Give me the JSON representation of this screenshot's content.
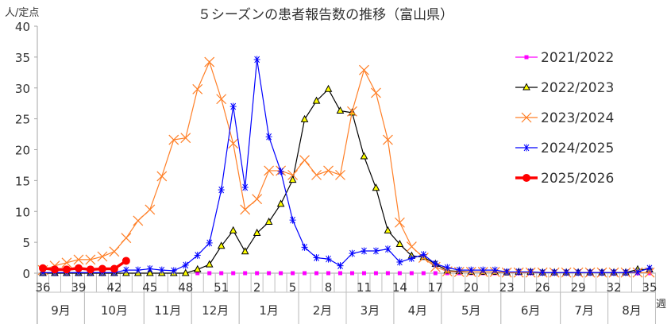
{
  "chart_data": {
    "type": "line",
    "title": "５シーズンの患者報告数の推移（富山県）",
    "ylabel": "人/定点",
    "xlabel": "週",
    "ylim": [
      0,
      40
    ],
    "yticks": [
      0,
      5,
      10,
      15,
      20,
      25,
      30,
      35,
      40
    ],
    "grid": false,
    "legend_position": "right",
    "x": [
      36,
      37,
      38,
      39,
      40,
      41,
      42,
      43,
      44,
      45,
      46,
      47,
      48,
      49,
      50,
      51,
      52,
      1,
      2,
      3,
      4,
      5,
      6,
      7,
      8,
      9,
      10,
      11,
      12,
      13,
      14,
      15,
      16,
      17,
      18,
      19,
      20,
      21,
      22,
      23,
      24,
      25,
      26,
      27,
      28,
      29,
      30,
      31,
      32,
      33,
      34,
      35
    ],
    "xtick_labels": [
      "36",
      "39",
      "42",
      "45",
      "48",
      "51",
      "2",
      "5",
      "8",
      "11",
      "14",
      "17",
      "20",
      "23",
      "26",
      "29",
      "32",
      "35"
    ],
    "month_labels": [
      {
        "label": "9月",
        "from": 0,
        "to": 4
      },
      {
        "label": "10月",
        "from": 4,
        "to": 9
      },
      {
        "label": "11月",
        "from": 9,
        "to": 13
      },
      {
        "label": "12月",
        "from": 13,
        "to": 17
      },
      {
        "label": "1月",
        "from": 17,
        "to": 22
      },
      {
        "label": "2月",
        "from": 22,
        "to": 26
      },
      {
        "label": "3月",
        "from": 26,
        "to": 30
      },
      {
        "label": "4月",
        "from": 30,
        "to": 34
      },
      {
        "label": "5月",
        "from": 34,
        "to": 39
      },
      {
        "label": "6月",
        "from": 39,
        "to": 44
      },
      {
        "label": "7月",
        "from": 44,
        "to": 48
      },
      {
        "label": "8月",
        "from": 48,
        "to": 52
      }
    ],
    "series": [
      {
        "name": "2021/2022",
        "color": "#ff00ff",
        "marker": "square",
        "start": 13,
        "values": [
          0,
          0,
          0,
          0,
          0,
          0,
          0,
          0,
          0,
          0,
          0,
          0,
          0,
          0,
          0,
          0,
          0,
          0,
          0,
          0,
          0,
          0,
          0,
          0,
          0,
          0,
          0,
          0,
          0,
          0,
          0,
          0,
          0,
          0,
          0,
          0,
          0,
          0,
          0
        ]
      },
      {
        "name": "2022/2023",
        "color": "#000000",
        "marker": "triangle",
        "start": 0,
        "values": [
          0,
          0,
          0,
          0,
          0,
          0,
          0,
          0,
          0,
          0,
          0,
          0,
          0,
          0.6,
          1.4,
          4.4,
          6.9,
          3.5,
          6.5,
          8.3,
          11.2,
          15.1,
          24.9,
          27.9,
          29.8,
          26.3,
          26.0,
          18.9,
          13.8,
          6.9,
          4.7,
          2.8,
          2.6,
          1.5,
          0.4,
          0.3,
          0.2,
          0.2,
          0.2,
          0.1,
          0.2,
          0.2,
          0.1,
          0.1,
          0.1,
          0.1,
          0.1,
          0.1,
          0.1,
          0.1,
          0.6,
          0.6
        ]
      },
      {
        "name": "2023/2024",
        "color": "#ff7f27",
        "marker": "x",
        "start": 0,
        "values": [
          0.5,
          1.2,
          1.7,
          2.2,
          2.2,
          2.7,
          3.5,
          5.7,
          8.5,
          10.3,
          15.7,
          21.6,
          21.9,
          29.8,
          34.2,
          28.2,
          21.0,
          10.3,
          12.0,
          16.6,
          16.6,
          15.9,
          18.3,
          15.9,
          16.6,
          15.9,
          26.2,
          32.9,
          29.2,
          21.6,
          8.2,
          4.3,
          2.5,
          1.0,
          0.3,
          0.2,
          0.2,
          0.2,
          0.2,
          0.1,
          0.1,
          0.1,
          0.1,
          0.1,
          0.1,
          0.1,
          0.1,
          0.1,
          0.1,
          0.1,
          0.1,
          0.1
        ]
      },
      {
        "name": "2024/2025",
        "color": "#0000ff",
        "marker": "asterisk",
        "start": 0,
        "values": [
          0.1,
          0.1,
          0.1,
          0.1,
          0.1,
          0.1,
          0.1,
          0.5,
          0.5,
          0.7,
          0.5,
          0.4,
          1.3,
          2.9,
          4.9,
          13.5,
          27.0,
          13.9,
          34.6,
          22.1,
          16.5,
          8.6,
          4.2,
          2.5,
          2.3,
          1.2,
          3.2,
          3.6,
          3.6,
          3.9,
          1.8,
          2.4,
          3.0,
          1.5,
          0.9,
          0.5,
          0.5,
          0.5,
          0.5,
          0.2,
          0.2,
          0.2,
          0.1,
          0.1,
          0.1,
          0.1,
          0.1,
          0.1,
          0.1,
          0.1,
          0.2,
          0.8
        ]
      },
      {
        "name": "2025/2026",
        "color": "#ff0000",
        "marker": "circle",
        "start": 0,
        "values": [
          0.8,
          0.6,
          0.6,
          0.8,
          0.6,
          0.7,
          0.7,
          2.0
        ]
      }
    ]
  },
  "labels": {
    "title": "５シーズンの患者報告数の推移（富山県）",
    "y_unit": "人/定点",
    "x_unit": "週"
  }
}
